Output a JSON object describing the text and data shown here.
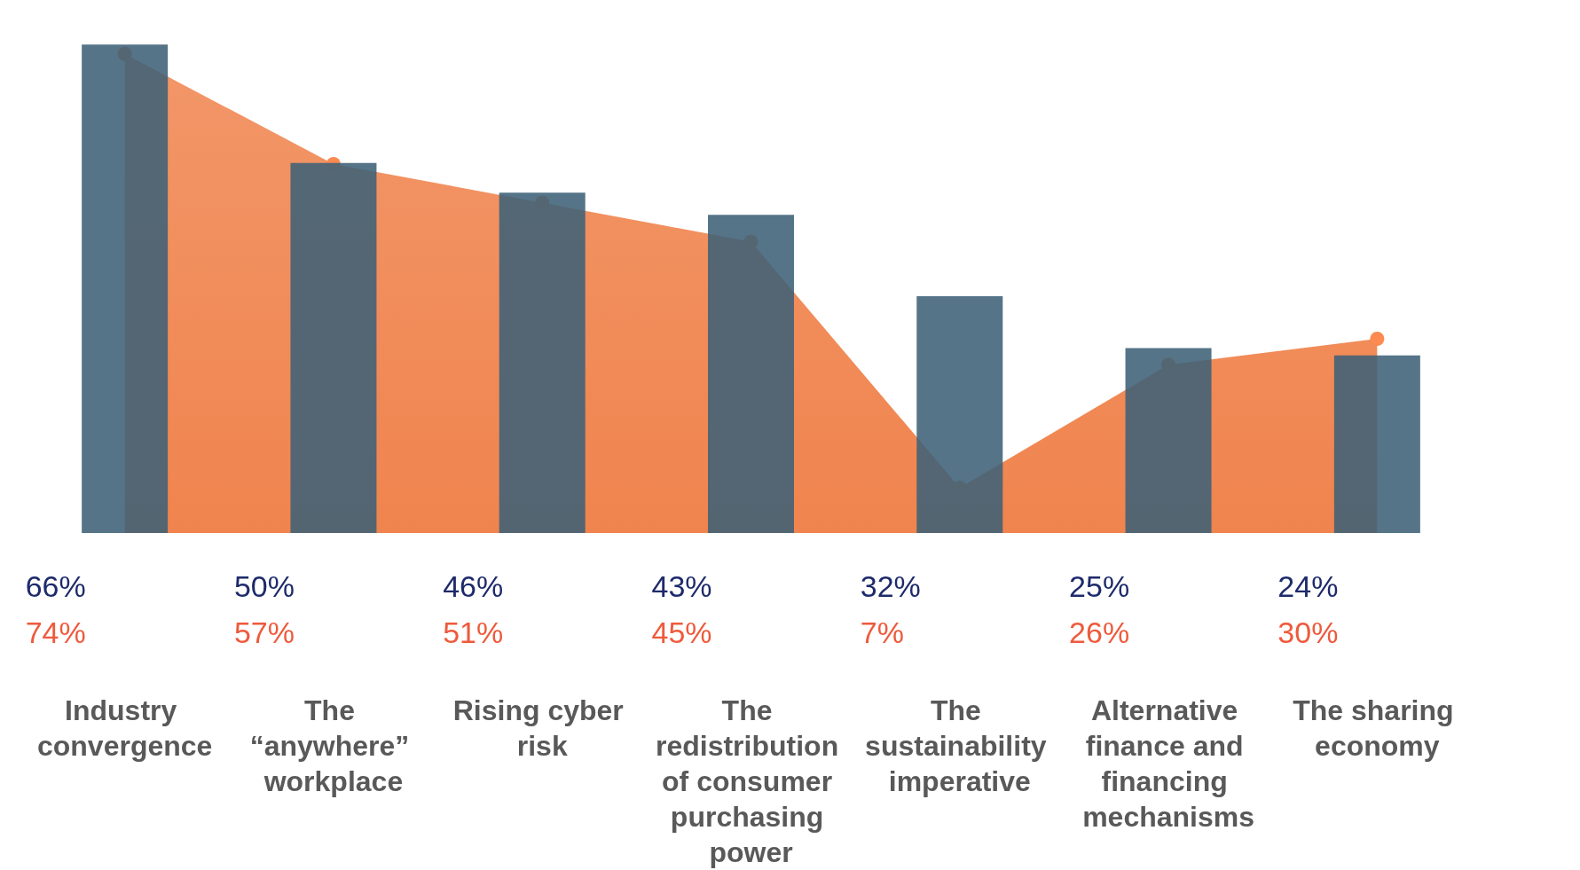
{
  "chart_data": {
    "type": "bar",
    "categories": [
      "Industry convergence",
      "The “anywhere” workplace",
      "Rising cyber risk",
      "The redistribution of consumer purchasing power",
      "The sustainability imperative",
      "Alternative finance and financing mechanisms",
      "The sharing economy"
    ],
    "series": [
      {
        "color": "#3d6178",
        "values": [
          66,
          50,
          46,
          43,
          32,
          25,
          24
        ],
        "value_labels": [
          "66%",
          "50%",
          "46%",
          "43%",
          "32%",
          "25%",
          "24%"
        ]
      },
      {
        "type": "area",
        "axis": "y2",
        "color": "#f0844e",
        "values": [
          74,
          57,
          51,
          45,
          7,
          26,
          30
        ],
        "value_labels": [
          "74%",
          "57%",
          "51%",
          "45%",
          "7%",
          "26%",
          "30%"
        ]
      }
    ],
    "marker": "circle",
    "grid": false
  }
}
